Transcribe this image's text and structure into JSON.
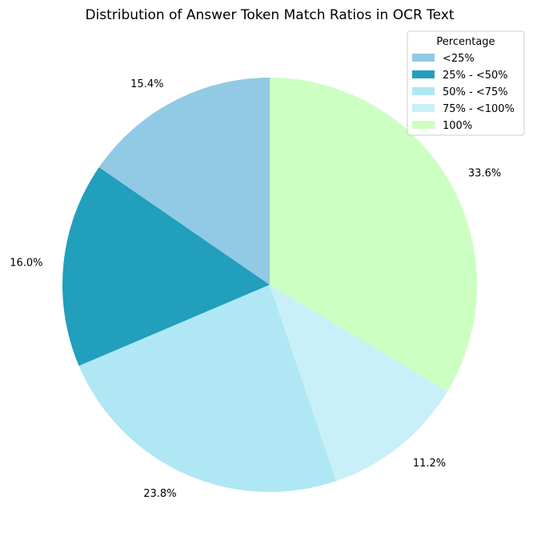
{
  "chart_data": {
    "type": "pie",
    "title": "Distribution of Answer Token Match Ratios in OCR Text",
    "legend_title": "Percentage",
    "legend_position": "top-right",
    "start_angle_deg": 90,
    "direction": "counterclockwise",
    "slices": [
      {
        "label": "<25%",
        "value": 15.4,
        "pct_label": "15.4%",
        "color": "#92c9e5"
      },
      {
        "label": "25% - <50%",
        "value": 16.0,
        "pct_label": "16.0%",
        "color": "#219fbd"
      },
      {
        "label": "50% - <75%",
        "value": 23.8,
        "pct_label": "23.8%",
        "color": "#b0e7f4"
      },
      {
        "label": "75% - <100%",
        "value": 11.2,
        "pct_label": "11.2%",
        "color": "#c9eff8"
      },
      {
        "label": "100%",
        "value": 33.6,
        "pct_label": "33.6%",
        "color": "#ccffc2"
      }
    ]
  }
}
